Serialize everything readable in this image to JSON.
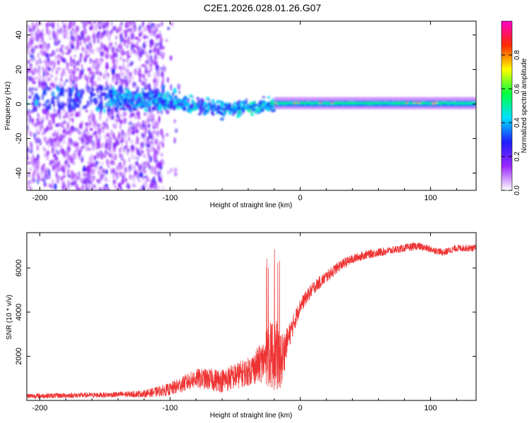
{
  "title": "C2E1.2026.028.01.26.G07",
  "chart_data": [
    {
      "type": "heatmap",
      "name": "spectrogram",
      "xlabel": "Height of straight line (km)",
      "ylabel": "Frequency (Hz)",
      "xlim": [
        -210,
        135
      ],
      "ylim": [
        -50,
        48
      ],
      "xticks": [
        -200,
        -100,
        0,
        100
      ],
      "yticks": [
        -40,
        -20,
        0,
        20,
        40
      ],
      "description_regions": [
        {
          "x_range": [
            -210,
            -105
          ],
          "freq_range": [
            -50,
            48
          ],
          "amplitude": "low (0.05-0.25), noisy"
        },
        {
          "x_range": [
            -150,
            -20
          ],
          "freq_center": [
            3,
            -8
          ],
          "amplitude": "0.2-0.5"
        },
        {
          "x_range": [
            -20,
            135
          ],
          "freq_center": 0,
          "amplitude": "0.5-0.95 narrow tone"
        }
      ],
      "colorbar": {
        "label": "Normalized spectral amplitude",
        "range": [
          0,
          1
        ],
        "ticks": [
          "0.0",
          "0.2",
          "0.4",
          "0.6",
          "0.8"
        ],
        "colors": [
          "#ffffff",
          "#9c27ff",
          "#1f1fff",
          "#00e0ff",
          "#00ff40",
          "#ffff00",
          "#ff2a00",
          "#ff00c8"
        ]
      }
    },
    {
      "type": "line",
      "name": "snr",
      "xlabel": "Height of straight line (km)",
      "ylabel": "SNR (10 * v/v)",
      "xlim": [
        -210,
        135
      ],
      "ylim": [
        0,
        7600
      ],
      "xticks": [
        -200,
        -100,
        0,
        100
      ],
      "yticks": [
        2000,
        4000,
        6000
      ],
      "color": "#ee3333",
      "trend": {
        "x": [
          -210,
          -150,
          -120,
          -100,
          -80,
          -60,
          -40,
          -30,
          -22,
          -18,
          -15,
          -10,
          0,
          10,
          20,
          30,
          40,
          50,
          60,
          70,
          80,
          90,
          100,
          110,
          120,
          135
        ],
        "y": [
          200,
          250,
          300,
          500,
          1000,
          900,
          1300,
          1700,
          2100,
          2000,
          1700,
          2700,
          4300,
          5100,
          5600,
          6100,
          6400,
          6600,
          6700,
          6800,
          6900,
          7000,
          6850,
          6700,
          6900,
          6900
        ],
        "spread": [
          120,
          120,
          160,
          300,
          450,
          550,
          650,
          900,
          1600,
          1600,
          1400,
          600,
          350,
          300,
          280,
          250,
          220,
          200,
          200,
          180,
          180,
          180,
          160,
          160,
          160,
          160
        ]
      }
    }
  ]
}
